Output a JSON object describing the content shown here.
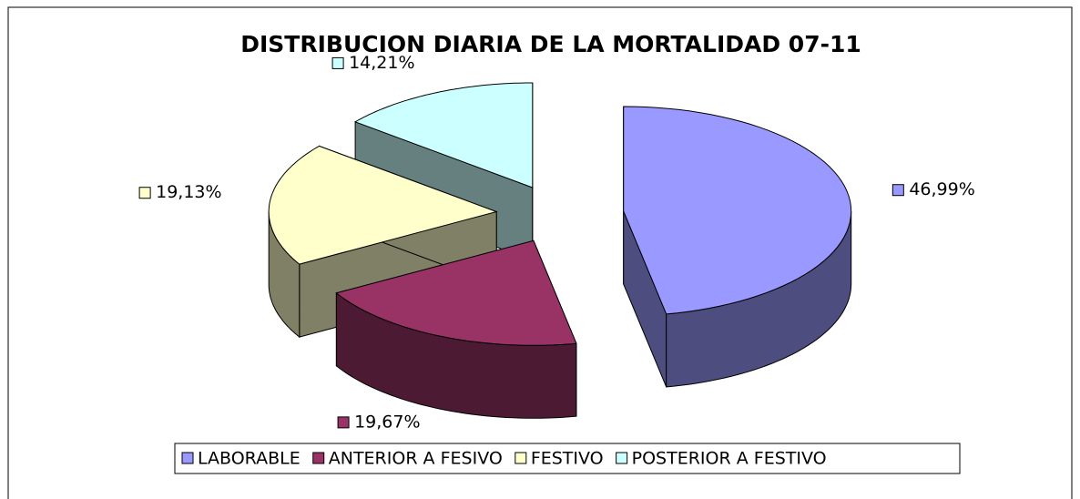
{
  "chart_data": {
    "type": "pie3d",
    "title": "DISTRIBUCION DIARIA DE LA MORTALIDAD 07-11",
    "categories": [
      "LABORABLE",
      "ANTERIOR A FESIVO",
      "FESTIVO",
      "POSTERIOR A FESTIVO"
    ],
    "values": [
      46.99,
      19.67,
      19.13,
      14.21
    ],
    "value_labels": [
      "46,99%",
      "19,67%",
      "19,13%",
      "14,21%"
    ],
    "colors": [
      "#9999ff",
      "#993366",
      "#ffffcc",
      "#ccffff"
    ],
    "legend": "bottom"
  }
}
